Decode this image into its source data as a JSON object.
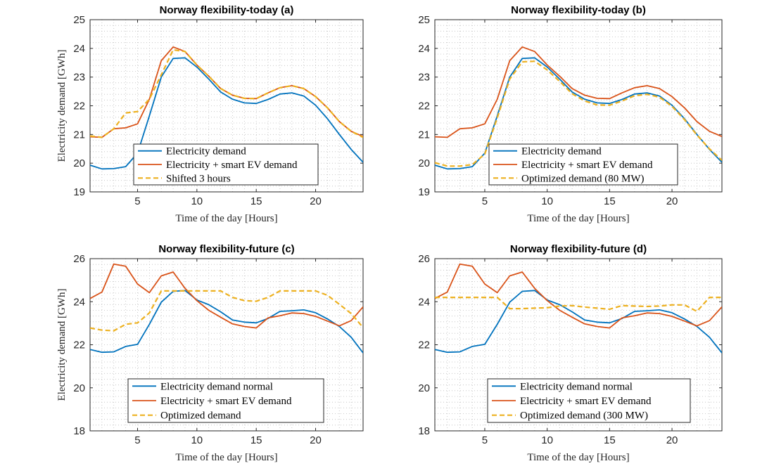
{
  "figure": {
    "colors": {
      "demand": "#0072BD",
      "ev": "#D95319",
      "optimized": "#EDB120",
      "grid": "#bdbdbd",
      "axis": "#262626"
    }
  },
  "chart_data": [
    {
      "type": "line",
      "title": "Norway flexibility-today (a)",
      "xlabel": "Time of the day [Hours]",
      "ylabel": "Electricity demand [GWh]",
      "xlim": [
        1,
        24
      ],
      "ylim": [
        19,
        25
      ],
      "xticks": [
        5,
        10,
        15,
        20
      ],
      "yticks": [
        19,
        20,
        21,
        22,
        23,
        24,
        25
      ],
      "grid": "minor dotted",
      "legend_position": "bottom-center",
      "x": [
        1,
        2,
        3,
        4,
        5,
        6,
        7,
        8,
        9,
        10,
        11,
        12,
        13,
        14,
        15,
        16,
        17,
        18,
        19,
        20,
        21,
        22,
        23,
        24
      ],
      "series": [
        {
          "name": "Electricity demand",
          "color_key": "demand",
          "style": "solid",
          "values": [
            19.93,
            19.8,
            19.81,
            19.88,
            20.35,
            21.65,
            23.0,
            23.65,
            23.67,
            23.35,
            22.93,
            22.48,
            22.23,
            22.1,
            22.08,
            22.22,
            22.41,
            22.45,
            22.34,
            22.02,
            21.55,
            21.0,
            20.48,
            20.03
          ]
        },
        {
          "name": "Electricity + smart EV demand",
          "color_key": "ev",
          "style": "solid",
          "values": [
            20.92,
            20.9,
            21.2,
            21.23,
            21.37,
            22.23,
            23.57,
            24.05,
            23.89,
            23.42,
            23.03,
            22.6,
            22.37,
            22.26,
            22.25,
            22.45,
            22.63,
            22.7,
            22.6,
            22.32,
            21.93,
            21.45,
            21.11,
            20.93
          ]
        },
        {
          "name": "Shifted 3 hours",
          "color_key": "optimized",
          "style": "dashed",
          "values": [
            20.95,
            20.9,
            21.2,
            21.75,
            21.8,
            22.23,
            23.08,
            23.95,
            23.89,
            23.42,
            23.03,
            22.6,
            22.37,
            22.26,
            22.25,
            22.45,
            22.63,
            22.7,
            22.6,
            22.32,
            21.93,
            21.45,
            21.11,
            20.9
          ]
        }
      ]
    },
    {
      "type": "line",
      "title": "Norway flexibility-today (b)",
      "xlabel": "Time of the day [Hours]",
      "ylabel": "",
      "xlim": [
        1,
        24
      ],
      "ylim": [
        19,
        25
      ],
      "xticks": [
        5,
        10,
        15,
        20
      ],
      "yticks": [
        19,
        20,
        21,
        22,
        23,
        24,
        25
      ],
      "grid": "minor dotted",
      "legend_position": "bottom-center",
      "x": [
        1,
        2,
        3,
        4,
        5,
        6,
        7,
        8,
        9,
        10,
        11,
        12,
        13,
        14,
        15,
        16,
        17,
        18,
        19,
        20,
        21,
        22,
        23,
        24
      ],
      "series": [
        {
          "name": "Electricity demand",
          "color_key": "demand",
          "style": "solid",
          "values": [
            19.93,
            19.8,
            19.81,
            19.88,
            20.35,
            21.65,
            23.0,
            23.65,
            23.67,
            23.35,
            22.93,
            22.48,
            22.23,
            22.1,
            22.08,
            22.22,
            22.41,
            22.45,
            22.34,
            22.02,
            21.55,
            21.0,
            20.48,
            20.03
          ]
        },
        {
          "name": "Electricity + smart EV demand",
          "color_key": "ev",
          "style": "solid",
          "values": [
            20.92,
            20.9,
            21.2,
            21.23,
            21.37,
            22.23,
            23.57,
            24.05,
            23.89,
            23.42,
            23.03,
            22.6,
            22.37,
            22.26,
            22.25,
            22.45,
            22.63,
            22.7,
            22.6,
            22.32,
            21.93,
            21.45,
            21.11,
            20.93
          ]
        },
        {
          "name": "Optimized demand (80 MW)",
          "color_key": "optimized",
          "style": "dashed",
          "values": [
            20.02,
            19.9,
            19.9,
            19.95,
            20.32,
            21.58,
            22.93,
            23.53,
            23.55,
            23.25,
            22.85,
            22.42,
            22.17,
            22.03,
            22.02,
            22.17,
            22.35,
            22.4,
            22.3,
            21.98,
            21.52,
            20.98,
            20.5,
            20.1
          ]
        }
      ]
    },
    {
      "type": "line",
      "title": "Norway flexibility-future (c)",
      "xlabel": "Time of the day [Hours]",
      "ylabel": "Electricity demand [GWh]",
      "xlim": [
        1,
        24
      ],
      "ylim": [
        18,
        26
      ],
      "xticks": [
        5,
        10,
        15,
        20
      ],
      "yticks": [
        18,
        20,
        22,
        24,
        26
      ],
      "grid": "minor dotted",
      "legend_position": "bottom-center",
      "x": [
        1,
        2,
        3,
        4,
        5,
        6,
        7,
        8,
        9,
        10,
        11,
        12,
        13,
        14,
        15,
        16,
        17,
        18,
        19,
        20,
        21,
        22,
        23,
        24
      ],
      "series": [
        {
          "name": "Electricity demand normal",
          "color_key": "demand",
          "style": "solid",
          "values": [
            21.78,
            21.65,
            21.67,
            21.92,
            22.02,
            22.95,
            23.98,
            24.48,
            24.52,
            24.08,
            23.86,
            23.53,
            23.15,
            23.05,
            23.02,
            23.22,
            23.55,
            23.58,
            23.62,
            23.49,
            23.2,
            22.85,
            22.35,
            21.62
          ]
        },
        {
          "name": "Electricity + smart EV demand",
          "color_key": "ev",
          "style": "solid",
          "values": [
            24.15,
            24.45,
            25.75,
            25.65,
            24.82,
            24.42,
            25.2,
            25.38,
            24.62,
            24.05,
            23.6,
            23.28,
            22.97,
            22.85,
            22.78,
            23.25,
            23.35,
            23.48,
            23.45,
            23.32,
            23.1,
            22.88,
            23.12,
            23.76
          ]
        },
        {
          "name": "Optimized demand",
          "color_key": "optimized",
          "style": "dashed",
          "values": [
            22.78,
            22.68,
            22.65,
            22.95,
            23.02,
            23.48,
            24.5,
            24.5,
            24.5,
            24.5,
            24.5,
            24.5,
            24.2,
            24.05,
            24.02,
            24.2,
            24.5,
            24.5,
            24.5,
            24.5,
            24.3,
            23.88,
            23.45,
            22.8
          ]
        }
      ]
    },
    {
      "type": "line",
      "title": "Norway flexibility-future (d)",
      "xlabel": "Time of the day [Hours]",
      "ylabel": "",
      "xlim": [
        1,
        24
      ],
      "ylim": [
        18,
        26
      ],
      "xticks": [
        5,
        10,
        15,
        20
      ],
      "yticks": [
        18,
        20,
        22,
        24,
        26
      ],
      "grid": "minor dotted",
      "legend_position": "bottom-center",
      "x": [
        1,
        2,
        3,
        4,
        5,
        6,
        7,
        8,
        9,
        10,
        11,
        12,
        13,
        14,
        15,
        16,
        17,
        18,
        19,
        20,
        21,
        22,
        23,
        24
      ],
      "series": [
        {
          "name": "Electricity demand normal",
          "color_key": "demand",
          "style": "solid",
          "values": [
            21.78,
            21.65,
            21.67,
            21.92,
            22.02,
            22.95,
            23.98,
            24.48,
            24.52,
            24.08,
            23.86,
            23.53,
            23.15,
            23.05,
            23.02,
            23.22,
            23.55,
            23.58,
            23.62,
            23.49,
            23.2,
            22.85,
            22.35,
            21.62
          ]
        },
        {
          "name": "Electricity + smart EV demand",
          "color_key": "ev",
          "style": "solid",
          "values": [
            24.15,
            24.45,
            25.75,
            25.65,
            24.82,
            24.42,
            25.2,
            25.38,
            24.62,
            24.05,
            23.6,
            23.28,
            22.97,
            22.85,
            22.78,
            23.25,
            23.35,
            23.48,
            23.45,
            23.32,
            23.1,
            22.88,
            23.12,
            23.76
          ]
        },
        {
          "name": "Optimized demand (300 MW)",
          "color_key": "optimized",
          "style": "dashed",
          "values": [
            24.2,
            24.2,
            24.2,
            24.2,
            24.2,
            24.2,
            23.68,
            23.68,
            23.7,
            23.72,
            23.8,
            23.82,
            23.75,
            23.7,
            23.65,
            23.82,
            23.8,
            23.78,
            23.8,
            23.85,
            23.85,
            23.55,
            24.2,
            24.2
          ]
        }
      ]
    }
  ]
}
